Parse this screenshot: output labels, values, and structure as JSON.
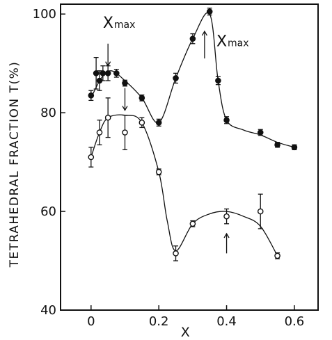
{
  "chart_data": {
    "type": "scatter",
    "title": "",
    "xlabel": "X",
    "ylabel": "TETRAHEDRAL FRACTION T(%)",
    "xlim": [
      -0.09,
      0.67
    ],
    "ylim": [
      40,
      102
    ],
    "xticks": [
      0,
      0.2,
      0.4,
      0.6
    ],
    "xtick_labels": [
      "0",
      "0.2",
      "0.4",
      "0.6"
    ],
    "yticks": [
      40,
      60,
      80,
      100
    ],
    "ytick_labels": [
      "40",
      "60",
      "80",
      "100"
    ],
    "grid": false,
    "legend": "none",
    "series": [
      {
        "marker": "filled-circle",
        "x": [
          0.0,
          0.015,
          0.025,
          0.035,
          0.05,
          0.075,
          0.1,
          0.15,
          0.2,
          0.25,
          0.3,
          0.35,
          0.375,
          0.4,
          0.5,
          0.55,
          0.6
        ],
        "y": [
          83.5,
          88.0,
          86.5,
          88.0,
          88.0,
          88.0,
          86.0,
          83.0,
          78.0,
          87.0,
          95.0,
          100.5,
          86.5,
          78.5,
          76.0,
          73.5,
          73.0
        ],
        "yerr": [
          1.0,
          3.2,
          2.0,
          1.5,
          1.5,
          0.8,
          0.6,
          0.6,
          0.7,
          1.0,
          1.0,
          0.7,
          0.8,
          0.7,
          0.6,
          0.5,
          0.5
        ],
        "curve": [
          [
            0.0,
            83.0
          ],
          [
            0.03,
            87.0
          ],
          [
            0.06,
            88.5
          ],
          [
            0.1,
            86.5
          ],
          [
            0.15,
            83.0
          ],
          [
            0.2,
            78.0
          ],
          [
            0.25,
            87.0
          ],
          [
            0.3,
            95.0
          ],
          [
            0.35,
            100.0
          ],
          [
            0.375,
            86.5
          ],
          [
            0.4,
            78.5
          ],
          [
            0.45,
            76.5
          ],
          [
            0.5,
            75.5
          ],
          [
            0.55,
            74.0
          ],
          [
            0.6,
            73.0
          ]
        ]
      },
      {
        "marker": "open-circle",
        "x": [
          0.0,
          0.025,
          0.05,
          0.1,
          0.15,
          0.2,
          0.25,
          0.3,
          0.4,
          0.5,
          0.55
        ],
        "y": [
          71.0,
          76.0,
          79.0,
          76.0,
          78.0,
          68.0,
          51.5,
          57.5,
          59.0,
          60.0,
          51.0
        ],
        "yerr": [
          2.0,
          2.5,
          4.0,
          3.5,
          1.0,
          0.6,
          1.5,
          0.6,
          1.5,
          3.5,
          0.6
        ],
        "curve": [
          [
            0.0,
            71.0
          ],
          [
            0.025,
            76.0
          ],
          [
            0.05,
            79.0
          ],
          [
            0.1,
            79.5
          ],
          [
            0.15,
            78.0
          ],
          [
            0.2,
            68.0
          ],
          [
            0.225,
            58.0
          ],
          [
            0.25,
            52.0
          ],
          [
            0.3,
            57.5
          ],
          [
            0.35,
            59.5
          ],
          [
            0.4,
            60.0
          ],
          [
            0.45,
            59.0
          ],
          [
            0.5,
            57.0
          ],
          [
            0.55,
            51.0
          ]
        ]
      }
    ],
    "annotations": [
      {
        "text": "X",
        "subtext": "max",
        "x": 0.035,
        "y": 97.2
      },
      {
        "text": "X",
        "subtext": "max",
        "x": 0.37,
        "y": 93.5
      }
    ],
    "arrows": [
      {
        "x": 0.05,
        "y_from": 94.0,
        "y_to": 89.5
      },
      {
        "x": 0.1,
        "y_from": 85.0,
        "y_to": 80.5
      },
      {
        "x": 0.335,
        "y_from": 91.0,
        "y_to": 96.5
      },
      {
        "x": 0.4,
        "y_from": 51.5,
        "y_to": 55.5
      }
    ]
  }
}
